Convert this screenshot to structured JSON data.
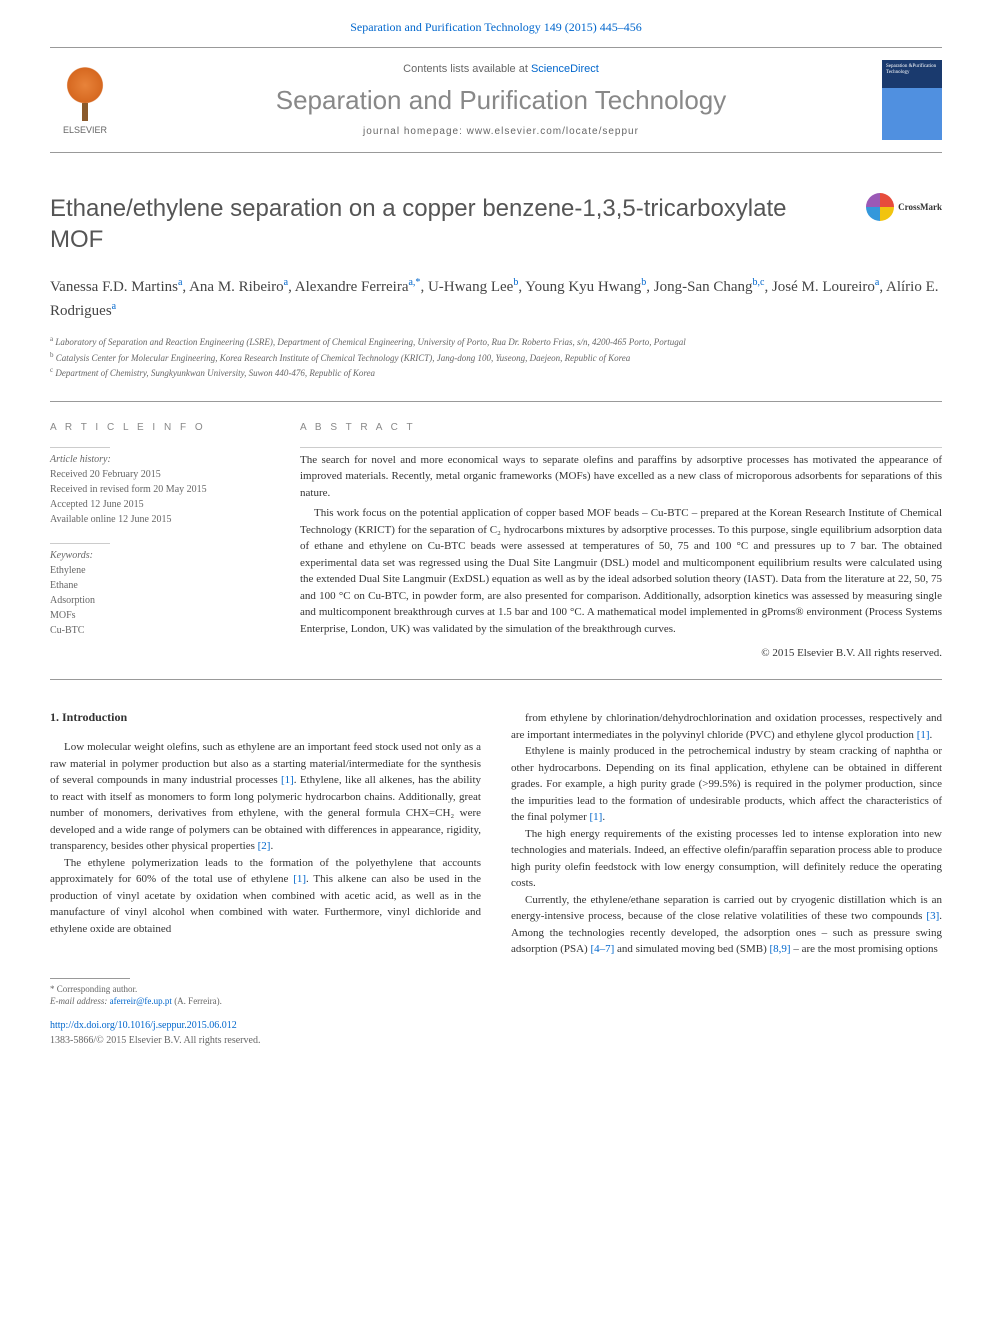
{
  "citation": "Separation and Purification Technology 149 (2015) 445–456",
  "header": {
    "contents_prefix": "Contents lists available at ",
    "contents_link": "ScienceDirect",
    "journal_title": "Separation and Purification Technology",
    "homepage_prefix": "journal homepage: ",
    "homepage_url": "www.elsevier.com/locate/seppur",
    "elsevier_label": "ELSEVIER",
    "cover_text": "Separation &Purification Technology"
  },
  "crossmark_label": "CrossMark",
  "title": "Ethane/ethylene separation on a copper benzene-1,3,5-tricarboxylate MOF",
  "authors_html": "Vanessa F.D. Martins<span class='sup'>a</span>, Ana M. Ribeiro<span class='sup'>a</span>, Alexandre Ferreira<span class='sup'>a,*</span>, U-Hwang Lee<span class='sup'>b</span>, Young Kyu Hwang<span class='sup'>b</span>, Jong-San Chang<span class='sup'>b,c</span>, José M. Loureiro<span class='sup'>a</span>, Alírio E. Rodrigues<span class='sup'>a</span>",
  "affiliations": [
    {
      "sup": "a",
      "text": "Laboratory of Separation and Reaction Engineering (LSRE), Department of Chemical Engineering, University of Porto, Rua Dr. Roberto Frias, s/n, 4200-465 Porto, Portugal"
    },
    {
      "sup": "b",
      "text": "Catalysis Center for Molecular Engineering, Korea Research Institute of Chemical Technology (KRICT), Jang-dong 100, Yuseong, Daejeon, Republic of Korea"
    },
    {
      "sup": "c",
      "text": "Department of Chemistry, Sungkyunkwan University, Suwon 440-476, Republic of Korea"
    }
  ],
  "info": {
    "article_info_label": "A R T I C L E   I N F O",
    "history_label": "Article history:",
    "history": [
      "Received 20 February 2015",
      "Received in revised form 20 May 2015",
      "Accepted 12 June 2015",
      "Available online 12 June 2015"
    ],
    "keywords_label": "Keywords:",
    "keywords": [
      "Ethylene",
      "Ethane",
      "Adsorption",
      "MOFs",
      "Cu-BTC"
    ]
  },
  "abstract": {
    "label": "A B S T R A C T",
    "paragraphs": [
      "The search for novel and more economical ways to separate olefins and paraffins by adsorptive processes has motivated the appearance of improved materials. Recently, metal organic frameworks (MOFs) have excelled as a new class of microporous adsorbents for separations of this nature.",
      "This work focus on the potential application of copper based MOF beads – Cu-BTC – prepared at the Korean Research Institute of Chemical Technology (KRICT) for the separation of C₂ hydrocarbons mixtures by adsorptive processes. To this purpose, single equilibrium adsorption data of ethane and ethylene on Cu-BTC beads were assessed at temperatures of 50, 75 and 100 °C and pressures up to 7 bar. The obtained experimental data set was regressed using the Dual Site Langmuir (DSL) model and multicomponent equilibrium results were calculated using the extended Dual Site Langmuir (ExDSL) equation as well as by the ideal adsorbed solution theory (IAST). Data from the literature at 22, 50, 75 and 100 °C on Cu-BTC, in powder form, are also presented for comparison. Additionally, adsorption kinetics was assessed by measuring single and multicomponent breakthrough curves at 1.5 bar and 100 °C. A mathematical model implemented in gProms® environment (Process Systems Enterprise, London, UK) was validated by the simulation of the breakthrough curves."
    ],
    "copyright": "© 2015 Elsevier B.V. All rights reserved."
  },
  "body": {
    "section_heading": "1. Introduction",
    "left_paragraphs": [
      "Low molecular weight olefins, such as ethylene are an important feed stock used not only as a raw material in polymer production but also as a starting material/intermediate for the synthesis of several compounds in many industrial processes <a href='#'>[1]</a>. Ethylene, like all alkenes, has the ability to react with itself as monomers to form long polymeric hydrocarbon chains. Additionally, great number of monomers, derivatives from ethylene, with the general formula CHX=CH₂ were developed and a wide range of polymers can be obtained with differences in appearance, rigidity, transparency, besides other physical properties <a href='#'>[2]</a>.",
      "The ethylene polymerization leads to the formation of the polyethylene that accounts approximately for 60% of the total use of ethylene <a href='#'>[1]</a>. This alkene can also be used in the production of vinyl acetate by oxidation when combined with acetic acid, as well as in the manufacture of vinyl alcohol when combined with water. Furthermore, vinyl dichloride and ethylene oxide are obtained"
    ],
    "right_paragraphs": [
      "from ethylene by chlorination/dehydrochlorination and oxidation processes, respectively and are important intermediates in the polyvinyl chloride (PVC) and ethylene glycol production <a href='#'>[1]</a>.",
      "Ethylene is mainly produced in the petrochemical industry by steam cracking of naphtha or other hydrocarbons. Depending on its final application, ethylene can be obtained in different grades. For example, a high purity grade (>99.5%) is required in the polymer production, since the impurities lead to the formation of undesirable products, which affect the characteristics of the final polymer <a href='#'>[1]</a>.",
      "The high energy requirements of the existing processes led to intense exploration into new technologies and materials. Indeed, an effective olefin/paraffin separation process able to produce high purity olefin feedstock with low energy consumption, will definitely reduce the operating costs.",
      "Currently, the ethylene/ethane separation is carried out by cryogenic distillation which is an energy-intensive process, because of the close relative volatilities of these two compounds <a href='#'>[3]</a>. Among the technologies recently developed, the adsorption ones – such as pressure swing adsorption (PSA) <a href='#'>[4–7]</a> and simulated moving bed (SMB) <a href='#'>[8,9]</a> – are the most promising options"
    ]
  },
  "footnotes": {
    "corresponding": "* Corresponding author.",
    "email_label": "E-mail address:",
    "email": "aferreir@fe.up.pt",
    "email_who": "(A. Ferreira)."
  },
  "doi": "http://dx.doi.org/10.1016/j.seppur.2015.06.012",
  "issn": "1383-5866/© 2015 Elsevier B.V. All rights reserved.",
  "colors": {
    "link": "#0066cc",
    "text": "#333333",
    "muted": "#666666",
    "title_gray": "#888888",
    "border": "#999999"
  }
}
